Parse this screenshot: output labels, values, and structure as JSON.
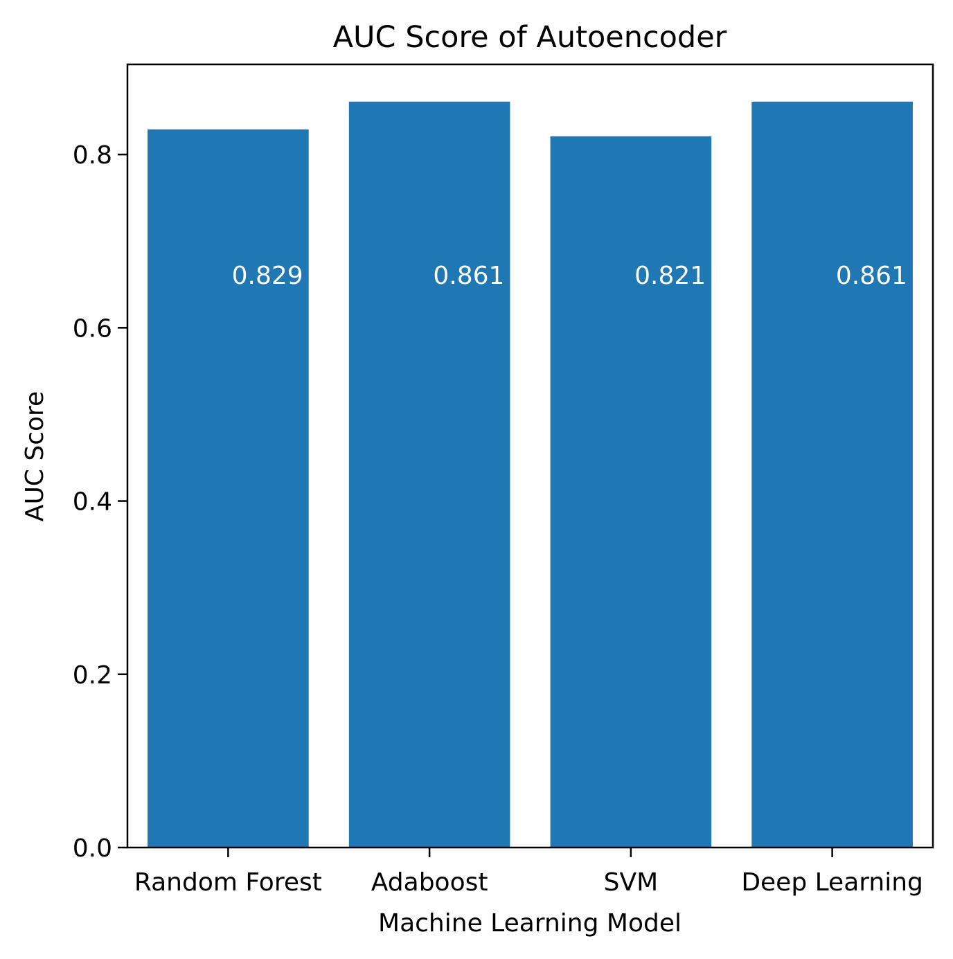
{
  "chart_data": {
    "type": "bar",
    "title": "AUC Score of Autoencoder",
    "xlabel": "Machine Learning Model",
    "ylabel": "AUC Score",
    "categories": [
      "Random Forest",
      "Adaboost",
      "SVM",
      "Deep Learning"
    ],
    "values": [
      0.829,
      0.861,
      0.821,
      0.861
    ],
    "value_labels": [
      "0.829",
      "0.861",
      "0.821",
      "0.861"
    ],
    "ylim": [
      0,
      0.904
    ],
    "yticks": [
      0.0,
      0.2,
      0.4,
      0.6,
      0.8
    ],
    "ytick_labels": [
      "0.0",
      "0.2",
      "0.4",
      "0.6",
      "0.8"
    ],
    "bar_color": "#1f77b4",
    "value_label_color": "#ffffff",
    "grid": false,
    "legend": "none"
  }
}
